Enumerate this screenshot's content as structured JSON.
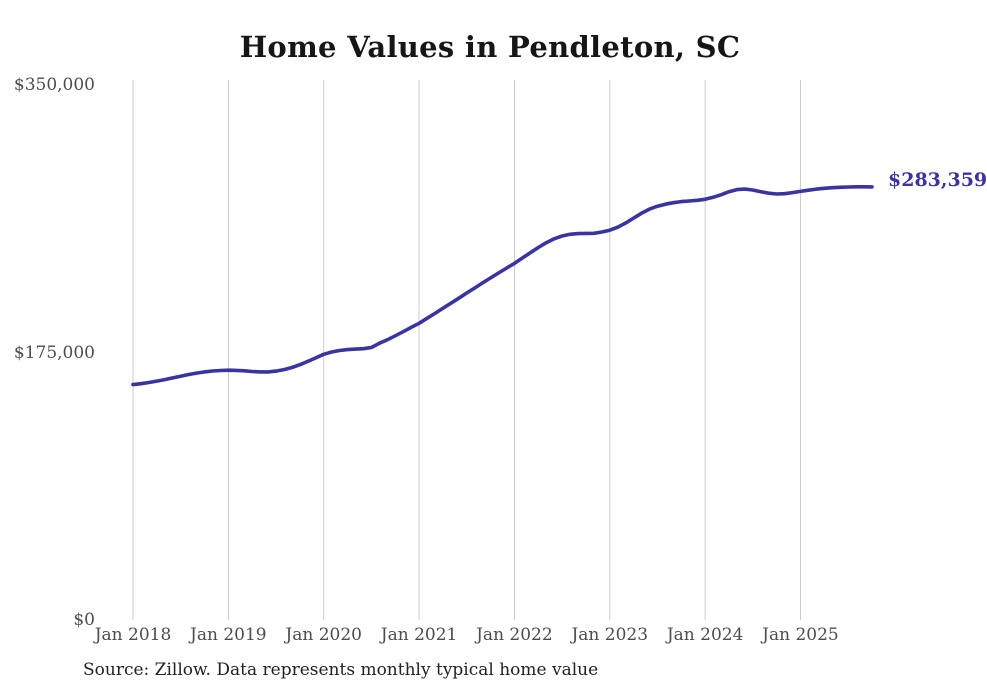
{
  "title": "Home Values in Pendleton, SC",
  "source_note": "Source: Zillow. Data represents monthly typical home value",
  "end_label": "$283,359",
  "colors": {
    "line": "#3a34a1",
    "end_label_text": "#3a34a1",
    "grid": "#cbcbcb",
    "axis_text": "#4d4d4d",
    "title_text": "#161616",
    "background": "#ffffff"
  },
  "y_axis": {
    "min": 0,
    "max": 350000,
    "ticks": [
      {
        "label": "$0",
        "value": 0
      },
      {
        "label": "$175,000",
        "value": 175000
      },
      {
        "label": "$350,000",
        "value": 350000
      }
    ]
  },
  "x_axis": {
    "tick_labels": [
      "Jan 2018",
      "Jan 2019",
      "Jan 2020",
      "Jan 2021",
      "Jan 2022",
      "Jan 2023",
      "Jan 2024",
      "Jan 2025"
    ],
    "tick_indices": [
      0,
      12,
      24,
      36,
      48,
      60,
      72,
      84
    ]
  },
  "chart_data": {
    "type": "line",
    "title": "Home Values in Pendleton, SC",
    "xlabel": "",
    "ylabel": "",
    "ylim": [
      0,
      350000
    ],
    "grid": "vertical-only",
    "legend": "none",
    "annotation": {
      "text": "$283,359",
      "position": "end-of-line"
    },
    "x": [
      "Jan 2018",
      "Feb 2018",
      "Mar 2018",
      "Apr 2018",
      "May 2018",
      "Jun 2018",
      "Jul 2018",
      "Aug 2018",
      "Sep 2018",
      "Oct 2018",
      "Nov 2018",
      "Dec 2018",
      "Jan 2019",
      "Feb 2019",
      "Mar 2019",
      "Apr 2019",
      "May 2019",
      "Jun 2019",
      "Jul 2019",
      "Aug 2019",
      "Sep 2019",
      "Oct 2019",
      "Nov 2019",
      "Dec 2019",
      "Jan 2020",
      "Feb 2020",
      "Mar 2020",
      "Apr 2020",
      "May 2020",
      "Jun 2020",
      "Jul 2020",
      "Aug 2020",
      "Sep 2020",
      "Oct 2020",
      "Nov 2020",
      "Dec 2020",
      "Jan 2021",
      "Feb 2021",
      "Mar 2021",
      "Apr 2021",
      "May 2021",
      "Jun 2021",
      "Jul 2021",
      "Aug 2021",
      "Sep 2021",
      "Oct 2021",
      "Nov 2021",
      "Dec 2021",
      "Jan 2022",
      "Feb 2022",
      "Mar 2022",
      "Apr 2022",
      "May 2022",
      "Jun 2022",
      "Jul 2022",
      "Aug 2022",
      "Sep 2022",
      "Oct 2022",
      "Nov 2022",
      "Dec 2022",
      "Jan 2023",
      "Feb 2023",
      "Mar 2023",
      "Apr 2023",
      "May 2023",
      "Jun 2023",
      "Jul 2023",
      "Aug 2023",
      "Sep 2023",
      "Oct 2023",
      "Nov 2023",
      "Dec 2023",
      "Jan 2024",
      "Feb 2024",
      "Mar 2024",
      "Apr 2024",
      "May 2024",
      "Jun 2024",
      "Jul 2024",
      "Aug 2024",
      "Sep 2024",
      "Oct 2024",
      "Nov 2024",
      "Dec 2024",
      "Jan 2025",
      "Feb 2025",
      "Mar 2025",
      "Apr 2025",
      "May 2025",
      "Jun 2025",
      "Jul 2025",
      "Aug 2025",
      "Sep 2025",
      "Oct 2025"
    ],
    "values": [
      154000,
      154600,
      155400,
      156300,
      157300,
      158400,
      159500,
      160600,
      161500,
      162300,
      162900,
      163200,
      163400,
      163300,
      163000,
      162600,
      162300,
      162300,
      162800,
      163800,
      165200,
      167000,
      169200,
      171500,
      173800,
      175300,
      176300,
      176900,
      177200,
      177500,
      178300,
      181000,
      183300,
      185900,
      188600,
      191400,
      194100,
      197400,
      200600,
      203900,
      207200,
      210500,
      213900,
      217200,
      220500,
      223800,
      227000,
      230200,
      233300,
      236800,
      240300,
      243700,
      246800,
      249400,
      251200,
      252300,
      252800,
      252900,
      253000,
      253800,
      255000,
      257000,
      259700,
      262900,
      266100,
      268800,
      270700,
      272000,
      273000,
      273700,
      274100,
      274600,
      275200,
      276500,
      278200,
      280200,
      281600,
      281900,
      281300,
      280200,
      279200,
      278700,
      278900,
      279600,
      280400,
      281200,
      281900,
      282400,
      282800,
      283100,
      283300,
      283400,
      283400,
      283359
    ]
  }
}
